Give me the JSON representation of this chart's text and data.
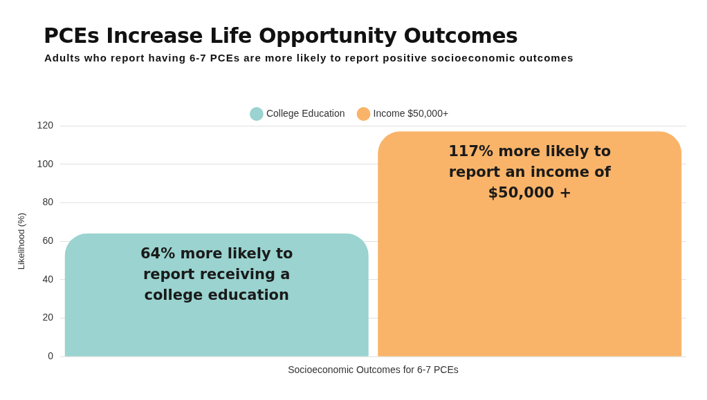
{
  "chart_data": {
    "type": "bar",
    "title": "PCEs Increase Life Opportunity Outcomes",
    "subtitle": "Adults who report having 6-7 PCEs are more likely to report positive socioeconomic outcomes",
    "xlabel": "Socioeconomic Outcomes for 6-7 PCEs",
    "ylabel": "Likelihood (%)",
    "categories": [
      null
    ],
    "series": [
      {
        "name": "College Education",
        "color": "#9ad3cf",
        "values": [
          64
        ],
        "value_labels": [
          "64% more likely to report receiving a college education"
        ]
      },
      {
        "name": "Income $50,000+",
        "color": "#f9b469",
        "values": [
          117
        ],
        "value_labels": [
          "117% more likely to report an income of $50,000 +"
        ]
      }
    ],
    "ylim": [
      0,
      120
    ],
    "yticks": [
      0,
      20,
      40,
      60,
      80,
      100,
      120
    ],
    "grid": "y",
    "legend": "top"
  }
}
